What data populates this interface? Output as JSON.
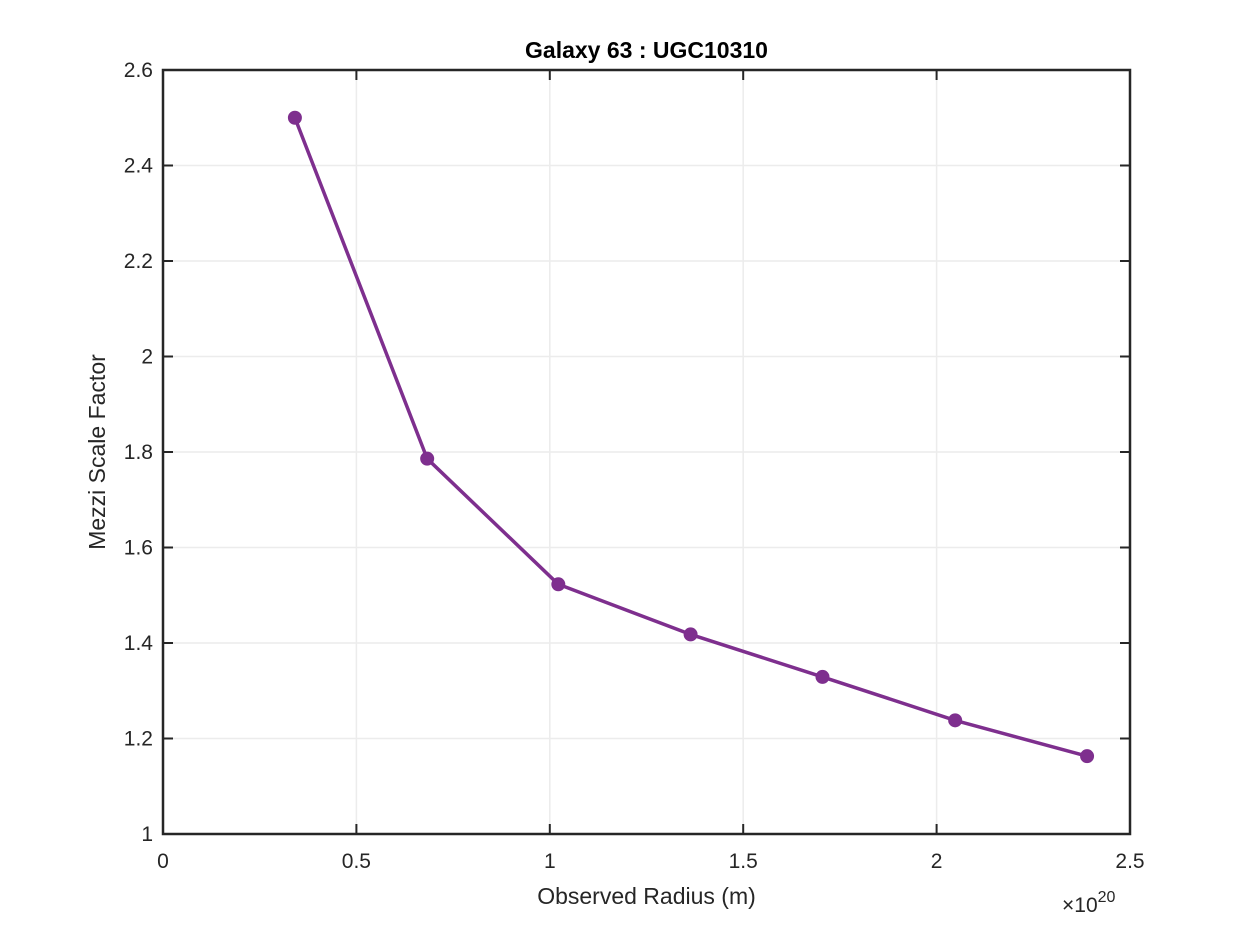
{
  "chart_data": {
    "type": "line",
    "title": "Galaxy 63 : UGC10310",
    "xlabel": "Observed Radius (m)",
    "ylabel": "Mezzi Scale Factor",
    "x_exponent_label": {
      "base": "×10",
      "exponent": "20"
    },
    "xlim": [
      0,
      2.5
    ],
    "ylim": [
      1,
      2.6
    ],
    "x_ticks": [
      0,
      0.5,
      1,
      1.5,
      2,
      2.5
    ],
    "x_tick_labels": [
      "0",
      "0.5",
      "1",
      "1.5",
      "2",
      "2.5"
    ],
    "y_ticks": [
      1,
      1.2,
      1.4,
      1.6,
      1.8,
      2,
      2.2,
      2.4,
      2.6
    ],
    "y_tick_labels": [
      "1",
      "1.2",
      "1.4",
      "1.6",
      "1.8",
      "2",
      "2.2",
      "2.4",
      "2.6"
    ],
    "grid": true,
    "series": [
      {
        "color": "#7e2f8e",
        "marker": "circle",
        "x": [
          0.341,
          0.683,
          1.022,
          1.364,
          1.705,
          2.048,
          2.389
        ],
        "y": [
          2.5,
          1.786,
          1.523,
          1.418,
          1.329,
          1.238,
          1.163
        ]
      }
    ]
  }
}
